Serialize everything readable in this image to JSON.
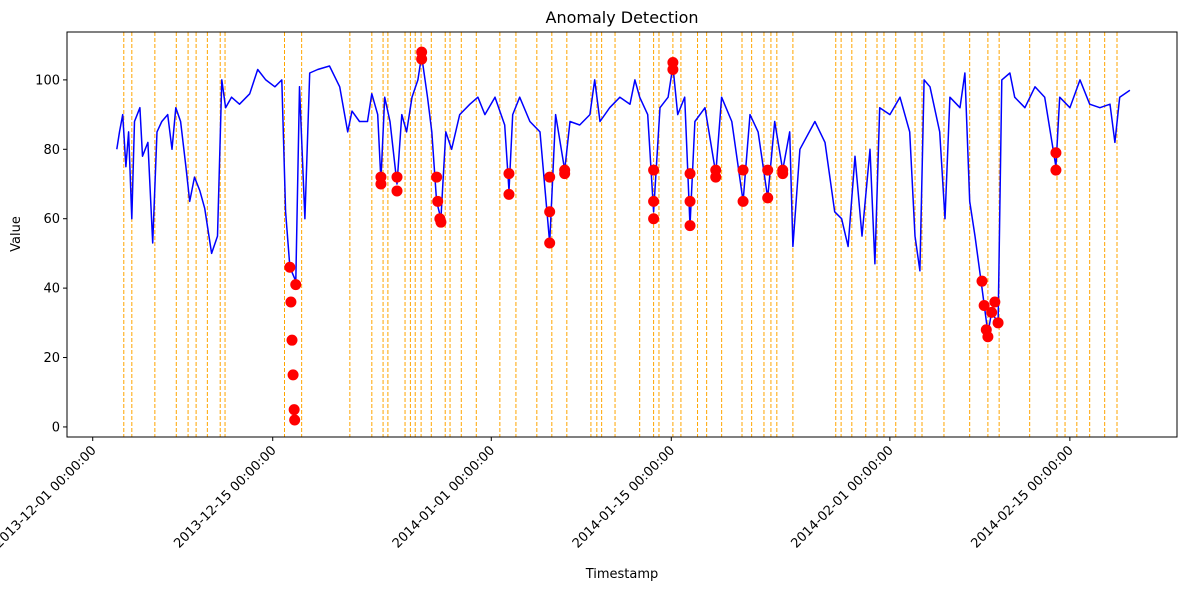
{
  "chart_data": {
    "type": "line",
    "title": "Anomaly Detection",
    "x_label": "Timestamp",
    "y_label": "Value",
    "xlim": [
      "2013-11-29 00:00:00",
      "2014-02-23 08:00:00"
    ],
    "xticks": [
      "2013-12-01 00:00:00",
      "2013-12-15 00:00:00",
      "2014-01-01 00:00:00",
      "2014-01-15 00:00:00",
      "2014-02-01 00:00:00",
      "2014-02-15 00:00:00"
    ],
    "ylim": [
      -2.9,
      113.8
    ],
    "yticks": [
      0,
      20,
      40,
      60,
      80,
      100
    ],
    "grid": false,
    "series": [
      {
        "type": "line",
        "color": "blue",
        "x": [
          "2013-12-02 21:00:00",
          "2013-12-03 02:00:00",
          "2013-12-03 08:00:00",
          "2013-12-03 14:00:00",
          "2013-12-03 19:00:00",
          "2013-12-04 01:00:00",
          "2013-12-04 06:00:00",
          "2013-12-04 16:00:00",
          "2013-12-04 21:00:00",
          "2013-12-05 07:00:00",
          "2013-12-05 16:00:00",
          "2013-12-06 00:00:00",
          "2013-12-06 09:00:00",
          "2013-12-06 20:00:00",
          "2013-12-07 04:00:00",
          "2013-12-07 11:00:00",
          "2013-12-07 20:00:00",
          "2013-12-08 06:00:00",
          "2013-12-08 13:00:00",
          "2013-12-08 22:00:00",
          "2013-12-09 08:00:00",
          "2013-12-09 17:00:00",
          "2013-12-10 06:00:00",
          "2013-12-10 17:00:00",
          "2013-12-11 01:00:00",
          "2013-12-11 08:00:00",
          "2013-12-11 19:00:00",
          "2013-12-12 10:00:00",
          "2013-12-13 05:00:00",
          "2013-12-13 20:00:00",
          "2013-12-14 11:00:00",
          "2013-12-15 04:00:00",
          "2013-12-15 17:00:00",
          "2013-12-16 00:00:00",
          "2013-12-16 08:00:00",
          "2013-12-16 19:00:00",
          "2013-12-17 02:00:00",
          "2013-12-17 12:00:00",
          "2013-12-17 21:00:00",
          "2013-12-18 12:00:00",
          "2013-12-19 10:00:00",
          "2013-12-20 05:00:00",
          "2013-12-20 20:00:00",
          "2013-12-21 04:00:00",
          "2013-12-21 18:00:00",
          "2013-12-22 09:00:00",
          "2013-12-22 17:00:00",
          "2013-12-23 04:00:00",
          "2013-12-23 10:00:00",
          "2013-12-23 17:00:00",
          "2013-12-24 03:00:00",
          "2013-12-24 16:00:00",
          "2013-12-25 01:00:00",
          "2013-12-25 10:00:00",
          "2013-12-25 20:00:00",
          "2013-12-26 07:00:00",
          "2013-12-26 14:00:00",
          "2013-12-27 01:00:00",
          "2013-12-27 09:00:00",
          "2013-12-27 18:00:00",
          "2013-12-28 02:00:00",
          "2013-12-28 11:00:00",
          "2013-12-28 22:00:00",
          "2013-12-29 13:00:00",
          "2013-12-30 08:00:00",
          "2013-12-30 23:00:00",
          "2013-12-31 12:00:00",
          "2014-01-01 07:00:00",
          "2014-01-02 01:00:00",
          "2014-01-02 09:00:00",
          "2014-01-02 16:00:00",
          "2014-01-03 05:00:00",
          "2014-01-04 00:00:00",
          "2014-01-04 19:00:00",
          "2014-01-05 13:00:00",
          "2014-01-06 00:00:00",
          "2014-01-06 17:00:00",
          "2014-01-07 03:00:00",
          "2014-01-07 21:00:00",
          "2014-01-08 16:00:00",
          "2014-01-09 01:00:00",
          "2014-01-09 11:00:00",
          "2014-01-10 05:00:00",
          "2014-01-11 00:00:00",
          "2014-01-11 19:00:00",
          "2014-01-12 04:00:00",
          "2014-01-12 13:00:00",
          "2014-01-13 04:00:00",
          "2014-01-13 15:00:00",
          "2014-01-14 03:00:00",
          "2014-01-14 18:00:00",
          "2014-01-15 03:00:00",
          "2014-01-15 12:00:00",
          "2014-01-16 01:00:00",
          "2014-01-16 11:00:00",
          "2014-01-16 20:00:00",
          "2014-01-17 15:00:00",
          "2014-01-18 11:00:00",
          "2014-01-18 22:00:00",
          "2014-01-19 17:00:00",
          "2014-01-20 14:00:00",
          "2014-01-21 03:00:00",
          "2014-01-21 18:00:00",
          "2014-01-22 12:00:00",
          "2014-01-23 01:00:00",
          "2014-01-23 16:00:00",
          "2014-01-24 05:00:00",
          "2014-01-24 11:00:00",
          "2014-01-25 00:00:00",
          "2014-01-26 04:00:00",
          "2014-01-26 23:00:00",
          "2014-01-27 17:00:00",
          "2014-01-28 06:00:00",
          "2014-01-28 18:00:00",
          "2014-01-29 07:00:00",
          "2014-01-29 20:00:00",
          "2014-01-30 11:00:00",
          "2014-01-30 20:00:00",
          "2014-01-31 05:00:00",
          "2014-02-01 00:00:00",
          "2014-02-01 19:00:00",
          "2014-02-02 13:00:00",
          "2014-02-02 23:00:00",
          "2014-02-03 08:00:00",
          "2014-02-03 16:00:00",
          "2014-02-04 03:00:00",
          "2014-02-04 21:00:00",
          "2014-02-05 07:00:00",
          "2014-02-05 16:00:00",
          "2014-02-06 11:00:00",
          "2014-02-06 20:00:00",
          "2014-02-07 05:00:00",
          "2014-02-07 15:00:00",
          "2014-02-08 04:00:00",
          "2014-02-08 15:00:00",
          "2014-02-08 22:00:00",
          "2014-02-09 10:00:00",
          "2014-02-09 17:00:00",
          "2014-02-10 08:00:00",
          "2014-02-10 17:00:00",
          "2014-02-11 12:00:00",
          "2014-02-12 07:00:00",
          "2014-02-13 01:00:00",
          "2014-02-13 22:00:00",
          "2014-02-14 05:00:00",
          "2014-02-15 00:00:00",
          "2014-02-15 19:00:00",
          "2014-02-16 13:00:00",
          "2014-02-17 08:00:00",
          "2014-02-18 03:00:00",
          "2014-02-18 12:00:00",
          "2014-02-18 21:00:00",
          "2014-02-19 16:00:00"
        ],
        "values": [
          80,
          85,
          90,
          75,
          85,
          60,
          88,
          92,
          78,
          82,
          53,
          85,
          88,
          90,
          80,
          92,
          88,
          75,
          65,
          72,
          68,
          63,
          50,
          55,
          100,
          92,
          95,
          93,
          96,
          103,
          100,
          98,
          100,
          62,
          46,
          42,
          98,
          60,
          102,
          103,
          104,
          98,
          85,
          91,
          88,
          88,
          96,
          90,
          71,
          95,
          88,
          70,
          90,
          85,
          95,
          100,
          107,
          95,
          85,
          65,
          60,
          85,
          80,
          90,
          93,
          95,
          90,
          95,
          87,
          68,
          90,
          95,
          88,
          85,
          53,
          90,
          74,
          88,
          87,
          90,
          100,
          88,
          92,
          95,
          93,
          100,
          95,
          90,
          62,
          92,
          95,
          104,
          90,
          95,
          58,
          88,
          92,
          73,
          95,
          88,
          65,
          90,
          85,
          66,
          88,
          74,
          85,
          52,
          80,
          88,
          82,
          62,
          60,
          52,
          78,
          55,
          80,
          47,
          92,
          90,
          95,
          85,
          55,
          45,
          100,
          98,
          85,
          60,
          95,
          92,
          102,
          65,
          55,
          40,
          27,
          33,
          30,
          100,
          102,
          95,
          92,
          98,
          95,
          75,
          95,
          92,
          100,
          93,
          92,
          93,
          82,
          95,
          97
        ]
      },
      {
        "type": "scatter",
        "color": "red",
        "x": [
          "2013-12-16 08:00:00",
          "2013-12-16 10:00:00",
          "2013-12-16 12:00:00",
          "2013-12-16 14:00:00",
          "2013-12-16 16:00:00",
          "2013-12-16 17:00:00",
          "2013-12-16 19:00:00",
          "2013-12-23 10:00:00",
          "2013-12-23 10:00:00",
          "2013-12-24 16:00:00",
          "2013-12-24 16:00:00",
          "2013-12-26 14:00:00",
          "2013-12-26 14:00:00",
          "2013-12-27 18:00:00",
          "2013-12-27 20:00:00",
          "2013-12-28 00:00:00",
          "2013-12-28 02:00:00",
          "2014-01-02 09:00:00",
          "2014-01-02 09:00:00",
          "2014-01-05 13:00:00",
          "2014-01-05 13:00:00",
          "2014-01-05 13:00:00",
          "2014-01-06 17:00:00",
          "2014-01-06 17:00:00",
          "2014-01-13 15:00:00",
          "2014-01-13 15:00:00",
          "2014-01-13 15:00:00",
          "2014-01-15 03:00:00",
          "2014-01-15 03:00:00",
          "2014-01-16 11:00:00",
          "2014-01-16 11:00:00",
          "2014-01-16 11:00:00",
          "2014-01-18 11:00:00",
          "2014-01-18 11:00:00",
          "2014-01-20 14:00:00",
          "2014-01-20 14:00:00",
          "2014-01-22 12:00:00",
          "2014-01-22 12:00:00",
          "2014-01-23 16:00:00",
          "2014-01-23 16:00:00",
          "2014-02-08 04:00:00",
          "2014-02-08 08:00:00",
          "2014-02-08 12:00:00",
          "2014-02-08 15:00:00",
          "2014-02-08 22:00:00",
          "2014-02-09 04:00:00",
          "2014-02-09 10:00:00",
          "2014-02-13 22:00:00",
          "2014-02-13 22:00:00"
        ],
        "values": [
          46,
          36,
          25,
          15,
          5,
          2,
          41,
          72,
          70,
          72,
          68,
          108,
          106,
          72,
          65,
          60,
          59,
          73,
          67,
          72,
          62,
          53,
          74,
          73,
          74,
          65,
          60,
          105,
          103,
          73,
          65,
          58,
          74,
          72,
          74,
          65,
          74,
          66,
          74,
          73,
          42,
          35,
          28,
          26,
          33,
          36,
          30,
          79,
          74
        ]
      }
    ],
    "vlines": {
      "color": "orange",
      "x": [
        "2013-12-03 10:00:00",
        "2013-12-04 01:00:00",
        "2013-12-05 20:00:00",
        "2013-12-07 12:00:00",
        "2013-12-08 10:00:00",
        "2013-12-09 01:00:00",
        "2013-12-09 22:00:00",
        "2013-12-10 22:00:00",
        "2013-12-11 07:00:00",
        "2013-12-15 22:00:00",
        "2013-12-17 06:00:00",
        "2013-12-21 00:00:00",
        "2013-12-22 17:00:00",
        "2013-12-23 14:00:00",
        "2013-12-23 23:00:00",
        "2013-12-25 07:00:00",
        "2013-12-25 17:00:00",
        "2013-12-26 02:00:00",
        "2013-12-26 13:00:00",
        "2013-12-27 08:00:00",
        "2013-12-28 10:00:00",
        "2013-12-28 19:00:00",
        "2013-12-29 16:00:00",
        "2013-12-30 20:00:00",
        "2014-01-01 16:00:00",
        "2014-01-02 22:00:00",
        "2014-01-04 13:00:00",
        "2014-01-05 17:00:00",
        "2014-01-06 21:00:00",
        "2014-01-08 18:00:00",
        "2014-01-09 05:00:00",
        "2014-01-09 14:00:00",
        "2014-01-10 15:00:00",
        "2014-01-12 13:00:00",
        "2014-01-13 15:00:00",
        "2014-01-14 01:00:00",
        "2014-01-15 03:00:00",
        "2014-01-15 18:00:00",
        "2014-01-17 01:00:00",
        "2014-01-17 18:00:00",
        "2014-01-18 22:00:00",
        "2014-01-20 12:00:00",
        "2014-01-21 06:00:00",
        "2014-01-22 05:00:00",
        "2014-01-22 18:00:00",
        "2014-01-23 05:00:00",
        "2014-01-24 11:00:00",
        "2014-01-27 19:00:00",
        "2014-01-28 05:00:00",
        "2014-01-29 01:00:00",
        "2014-01-30 03:00:00",
        "2014-01-31 00:00:00",
        "2014-01-31 13:00:00",
        "2014-02-01 11:00:00",
        "2014-02-02 23:00:00",
        "2014-02-03 12:00:00",
        "2014-02-05 05:00:00",
        "2014-02-07 05:00:00",
        "2014-02-08 15:00:00",
        "2014-02-09 12:00:00",
        "2014-02-11 21:00:00",
        "2014-02-14 00:00:00",
        "2014-02-14 15:00:00",
        "2014-02-15 13:00:00",
        "2014-02-16 13:00:00",
        "2014-02-17 17:00:00",
        "2014-02-18 16:00:00"
      ]
    }
  }
}
